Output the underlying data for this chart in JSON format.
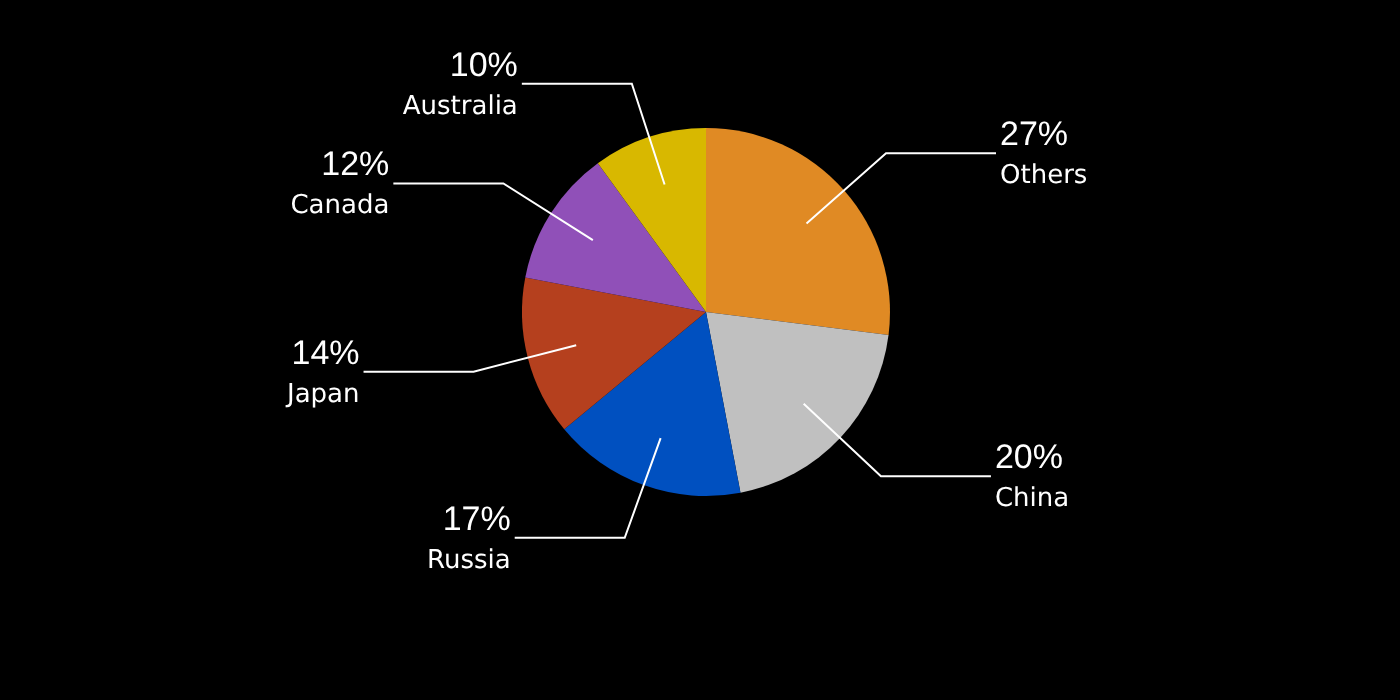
{
  "chart_data": {
    "type": "pie",
    "categories": [
      "Others",
      "China",
      "Russia",
      "Japan",
      "Canada",
      "Australia"
    ],
    "values": [
      27,
      20,
      17,
      14,
      12,
      10
    ],
    "value_labels": [
      "27%",
      "20%",
      "17%",
      "14%",
      "12%",
      "10%"
    ],
    "colors": [
      "#e08a24",
      "#c0c0c0",
      "#0050c0",
      "#b5401e",
      "#9050b8",
      "#d8b800"
    ],
    "legend": false
  }
}
